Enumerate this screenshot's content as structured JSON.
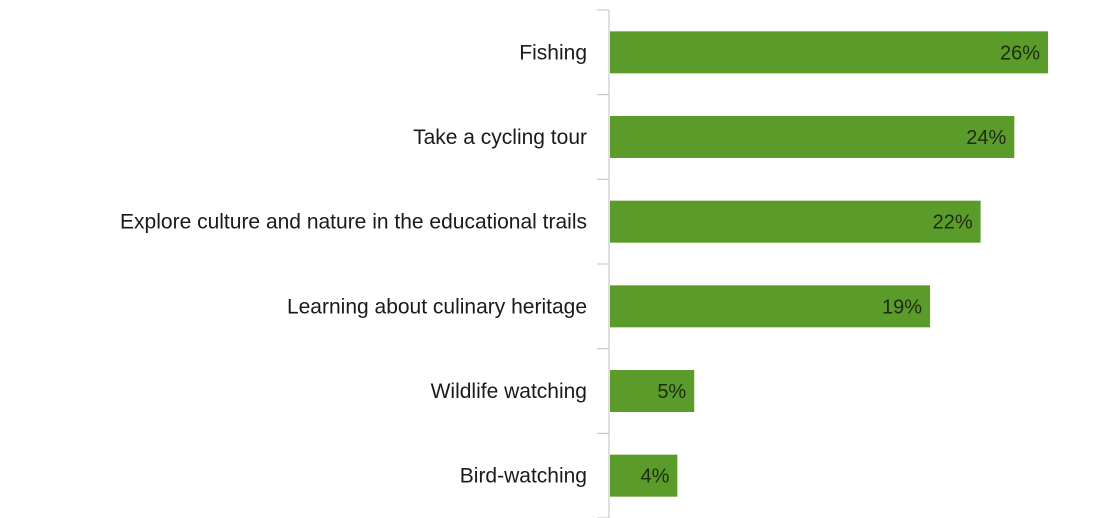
{
  "chart_data": {
    "type": "bar",
    "orientation": "horizontal",
    "categories": [
      "Fishing",
      "Take a cycling tour",
      "Explore culture and nature in the educational trails",
      "Learning about culinary heritage",
      "Wildlife watching",
      "Bird-watching"
    ],
    "values": [
      26,
      24,
      22,
      19,
      5,
      4
    ],
    "value_labels": [
      "26%",
      "24%",
      "22%",
      "19%",
      "5%",
      "4%"
    ],
    "unit": "%",
    "xlim": [
      0,
      29
    ],
    "grid": false,
    "legend": "none",
    "bar_color": "#5b9b2a",
    "axis_color": "#bfbfbf"
  }
}
